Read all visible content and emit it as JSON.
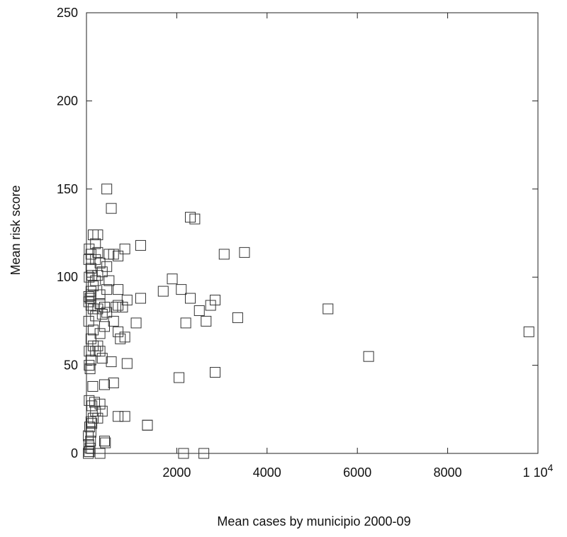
{
  "chart_data": {
    "type": "scatter",
    "title": "",
    "xlabel": "Mean cases by municipio 2000-09",
    "ylabel": "Mean risk score",
    "xlim": [
      0,
      10000
    ],
    "ylim": [
      0,
      250
    ],
    "x_ticks": [
      2000,
      4000,
      6000,
      8000,
      10000
    ],
    "x_tick_labels": [
      "2000",
      "4000",
      "6000",
      "8000",
      "1 10"
    ],
    "x_tick_exponent": "4",
    "y_ticks": [
      0,
      50,
      100,
      150,
      200,
      250
    ],
    "y_tick_labels": [
      "0",
      "50",
      "100",
      "150",
      "200",
      "250"
    ],
    "grid": false,
    "marker": "open-square",
    "series": [
      {
        "points": [
          [
            40,
            0
          ],
          [
            60,
            1
          ],
          [
            80,
            3
          ],
          [
            50,
            5
          ],
          [
            90,
            7
          ],
          [
            40,
            10
          ],
          [
            100,
            12
          ],
          [
            70,
            15
          ],
          [
            120,
            17
          ],
          [
            100,
            18
          ],
          [
            150,
            20
          ],
          [
            200,
            24
          ],
          [
            120,
            27
          ],
          [
            180,
            29
          ],
          [
            60,
            30
          ],
          [
            300,
            28
          ],
          [
            350,
            24
          ],
          [
            250,
            20
          ],
          [
            400,
            7
          ],
          [
            420,
            6
          ],
          [
            300,
            0
          ],
          [
            140,
            38
          ],
          [
            400,
            39
          ],
          [
            600,
            40
          ],
          [
            700,
            21
          ],
          [
            850,
            21
          ],
          [
            1350,
            16
          ],
          [
            2150,
            0
          ],
          [
            2600,
            0
          ],
          [
            2050,
            43
          ],
          [
            2850,
            46
          ],
          [
            900,
            51
          ],
          [
            550,
            52
          ],
          [
            80,
            48
          ],
          [
            60,
            50
          ],
          [
            100,
            53
          ],
          [
            350,
            54
          ],
          [
            200,
            58
          ],
          [
            300,
            58
          ],
          [
            60,
            58
          ],
          [
            150,
            61
          ],
          [
            250,
            61
          ],
          [
            100,
            65
          ],
          [
            750,
            65
          ],
          [
            850,
            66
          ],
          [
            700,
            69
          ],
          [
            300,
            68
          ],
          [
            150,
            70
          ],
          [
            50,
            75
          ],
          [
            400,
            72
          ],
          [
            600,
            75
          ],
          [
            1100,
            74
          ],
          [
            2200,
            74
          ],
          [
            2650,
            75
          ],
          [
            3350,
            77
          ],
          [
            9800,
            69
          ],
          [
            6250,
            55
          ],
          [
            5350,
            82
          ],
          [
            200,
            78
          ],
          [
            350,
            79
          ],
          [
            450,
            80
          ],
          [
            250,
            82
          ],
          [
            150,
            82
          ],
          [
            100,
            84
          ],
          [
            50,
            86
          ],
          [
            400,
            83
          ],
          [
            300,
            85
          ],
          [
            650,
            83
          ],
          [
            700,
            84
          ],
          [
            800,
            83
          ],
          [
            900,
            87
          ],
          [
            1200,
            88
          ],
          [
            2500,
            81
          ],
          [
            2750,
            84
          ],
          [
            2850,
            87
          ],
          [
            2300,
            88
          ],
          [
            1700,
            92
          ],
          [
            2100,
            93
          ],
          [
            1900,
            99
          ],
          [
            700,
            93
          ],
          [
            450,
            93
          ],
          [
            300,
            90
          ],
          [
            100,
            90
          ],
          [
            80,
            88
          ],
          [
            50,
            89
          ],
          [
            100,
            92
          ],
          [
            150,
            95
          ],
          [
            200,
            98
          ],
          [
            60,
            100
          ],
          [
            120,
            101
          ],
          [
            250,
            101
          ],
          [
            500,
            98
          ],
          [
            350,
            103
          ],
          [
            100,
            105
          ],
          [
            300,
            108
          ],
          [
            450,
            106
          ],
          [
            50,
            110
          ],
          [
            200,
            110
          ],
          [
            100,
            113
          ],
          [
            250,
            114
          ],
          [
            500,
            113
          ],
          [
            600,
            113
          ],
          [
            700,
            112
          ],
          [
            850,
            116
          ],
          [
            1200,
            118
          ],
          [
            3050,
            113
          ],
          [
            3500,
            114
          ],
          [
            60,
            116
          ],
          [
            200,
            119
          ],
          [
            150,
            124
          ],
          [
            250,
            124
          ],
          [
            1350,
            16
          ],
          [
            550,
            139
          ],
          [
            450,
            150
          ],
          [
            2300,
            134
          ],
          [
            2400,
            133
          ]
        ]
      }
    ]
  }
}
